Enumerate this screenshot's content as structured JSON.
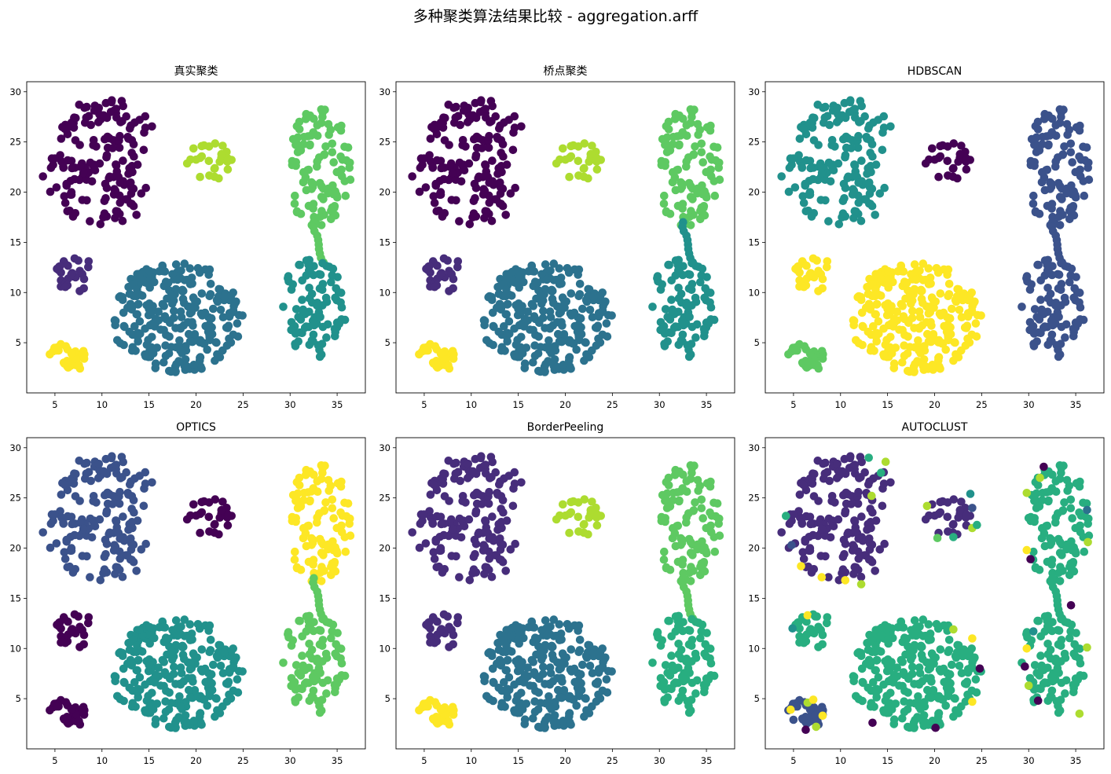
{
  "figure_title": "多种聚类算法结果比较 - aggregation.arff",
  "palette": [
    "#440154",
    "#472d7b",
    "#3b528b",
    "#2c728e",
    "#21918c",
    "#28ae80",
    "#5ec962",
    "#addc30",
    "#fde725"
  ],
  "chart_data": [
    {
      "type": "scatter",
      "title": "真实聚类",
      "xlim": [
        2,
        38
      ],
      "ylim": [
        0,
        31
      ],
      "xticks": [
        5,
        10,
        15,
        20,
        25,
        30,
        35
      ],
      "yticks": [
        5,
        10,
        15,
        20,
        25,
        30
      ],
      "clusters": [
        {
          "shape": "crescent",
          "cx": 11,
          "cy": 23,
          "color_index": 0
        },
        {
          "shape": "ellipse",
          "cx": 21.5,
          "cy": 23,
          "rx": 2.5,
          "ry": 2,
          "count": 28,
          "color_index": 7
        },
        {
          "shape": "ellipse",
          "cx": 33,
          "cy": 22.5,
          "rx": 3.5,
          "ry": 6,
          "count": 110,
          "color_index": 6
        },
        {
          "shape": "bridge",
          "x1": 32.5,
          "y1": 17,
          "x2": 33.5,
          "y2": 13,
          "count": 10,
          "color_index": 6
        },
        {
          "shape": "ellipse",
          "cx": 32.5,
          "cy": 8.5,
          "rx": 3.5,
          "ry": 5,
          "count": 95,
          "color_index": 4
        },
        {
          "shape": "ellipse",
          "cx": 7,
          "cy": 12,
          "rx": 2,
          "ry": 2,
          "count": 30,
          "color_index": 1
        },
        {
          "shape": "ellipse",
          "cx": 18,
          "cy": 7.5,
          "rx": 7,
          "ry": 5.5,
          "count": 270,
          "color_index": 3
        },
        {
          "shape": "ellipse",
          "cx": 6.3,
          "cy": 3.5,
          "rx": 2,
          "ry": 1.5,
          "count": 34,
          "color_index": 8
        }
      ]
    },
    {
      "type": "scatter",
      "title": "桥点聚类",
      "xlim": [
        2,
        38
      ],
      "ylim": [
        0,
        31
      ],
      "xticks": [
        5,
        10,
        15,
        20,
        25,
        30,
        35
      ],
      "yticks": [
        5,
        10,
        15,
        20,
        25,
        30
      ],
      "clusters": [
        {
          "shape": "crescent",
          "cx": 11,
          "cy": 23,
          "color_index": 0
        },
        {
          "shape": "ellipse",
          "cx": 21.5,
          "cy": 23,
          "rx": 2.5,
          "ry": 2,
          "count": 28,
          "color_index": 7
        },
        {
          "shape": "ellipse",
          "cx": 33,
          "cy": 22.5,
          "rx": 3.5,
          "ry": 6,
          "count": 110,
          "color_index": 6
        },
        {
          "shape": "bridge",
          "x1": 32.5,
          "y1": 17,
          "x2": 33.5,
          "y2": 13,
          "count": 10,
          "color_index": 4
        },
        {
          "shape": "ellipse",
          "cx": 32.5,
          "cy": 8.5,
          "rx": 3.5,
          "ry": 5,
          "count": 95,
          "color_index": 4
        },
        {
          "shape": "ellipse",
          "cx": 7,
          "cy": 12,
          "rx": 2,
          "ry": 2,
          "count": 30,
          "color_index": 1
        },
        {
          "shape": "ellipse",
          "cx": 18,
          "cy": 7.5,
          "rx": 7,
          "ry": 5.5,
          "count": 270,
          "color_index": 3
        },
        {
          "shape": "ellipse",
          "cx": 6.3,
          "cy": 3.5,
          "rx": 2,
          "ry": 1.5,
          "count": 34,
          "color_index": 8
        }
      ]
    },
    {
      "type": "scatter",
      "title": "HDBSCAN",
      "xlim": [
        2,
        38
      ],
      "ylim": [
        0,
        31
      ],
      "xticks": [
        5,
        10,
        15,
        20,
        25,
        30,
        35
      ],
      "yticks": [
        5,
        10,
        15,
        20,
        25,
        30
      ],
      "clusters": [
        {
          "shape": "crescent",
          "cx": 11,
          "cy": 23,
          "color_index": 4
        },
        {
          "shape": "ellipse",
          "cx": 21.5,
          "cy": 23,
          "rx": 2.5,
          "ry": 2,
          "count": 28,
          "color_index": 0
        },
        {
          "shape": "ellipse",
          "cx": 33,
          "cy": 22.5,
          "rx": 3.5,
          "ry": 6,
          "count": 110,
          "color_index": 2
        },
        {
          "shape": "bridge",
          "x1": 32.5,
          "y1": 17,
          "x2": 33.5,
          "y2": 13,
          "count": 10,
          "color_index": 2
        },
        {
          "shape": "ellipse",
          "cx": 32.5,
          "cy": 8.5,
          "rx": 3.5,
          "ry": 5,
          "count": 95,
          "color_index": 2
        },
        {
          "shape": "ellipse",
          "cx": 7,
          "cy": 12,
          "rx": 2,
          "ry": 2,
          "count": 30,
          "color_index": 8
        },
        {
          "shape": "ellipse",
          "cx": 18,
          "cy": 7.5,
          "rx": 7,
          "ry": 5.5,
          "count": 270,
          "color_index": 8
        },
        {
          "shape": "ellipse",
          "cx": 6.3,
          "cy": 3.5,
          "rx": 2,
          "ry": 1.5,
          "count": 34,
          "color_index": 6
        }
      ]
    },
    {
      "type": "scatter",
      "title": "OPTICS",
      "xlim": [
        2,
        38
      ],
      "ylim": [
        0,
        31
      ],
      "xticks": [
        5,
        10,
        15,
        20,
        25,
        30,
        35
      ],
      "yticks": [
        5,
        10,
        15,
        20,
        25,
        30
      ],
      "clusters": [
        {
          "shape": "crescent",
          "cx": 11,
          "cy": 23,
          "color_index": 2
        },
        {
          "shape": "ellipse",
          "cx": 21.5,
          "cy": 23,
          "rx": 2.5,
          "ry": 2,
          "count": 28,
          "color_index": 0
        },
        {
          "shape": "ellipse",
          "cx": 33,
          "cy": 22.5,
          "rx": 3.5,
          "ry": 6,
          "count": 110,
          "color_index": 8
        },
        {
          "shape": "bridge",
          "x1": 32.5,
          "y1": 17,
          "x2": 33.5,
          "y2": 13,
          "count": 10,
          "color_index": 6
        },
        {
          "shape": "ellipse",
          "cx": 32.5,
          "cy": 8.5,
          "rx": 3.5,
          "ry": 5,
          "count": 95,
          "color_index": 6
        },
        {
          "shape": "ellipse",
          "cx": 7,
          "cy": 12,
          "rx": 2,
          "ry": 2,
          "count": 30,
          "color_index": 0
        },
        {
          "shape": "ellipse",
          "cx": 18,
          "cy": 7.5,
          "rx": 7,
          "ry": 5.5,
          "count": 270,
          "color_index": 4
        },
        {
          "shape": "ellipse",
          "cx": 6.3,
          "cy": 3.5,
          "rx": 2,
          "ry": 1.5,
          "count": 34,
          "color_index": 0
        }
      ]
    },
    {
      "type": "scatter",
      "title": "BorderPeeling",
      "xlim": [
        2,
        38
      ],
      "ylim": [
        0,
        31
      ],
      "xticks": [
        5,
        10,
        15,
        20,
        25,
        30,
        35
      ],
      "yticks": [
        5,
        10,
        15,
        20,
        25,
        30
      ],
      "clusters": [
        {
          "shape": "crescent",
          "cx": 11,
          "cy": 23,
          "color_index": 1
        },
        {
          "shape": "ellipse",
          "cx": 21.5,
          "cy": 23,
          "rx": 2.5,
          "ry": 2,
          "count": 28,
          "color_index": 7
        },
        {
          "shape": "ellipse",
          "cx": 33,
          "cy": 22.5,
          "rx": 3.5,
          "ry": 6,
          "count": 110,
          "color_index": 6
        },
        {
          "shape": "bridge",
          "x1": 32.5,
          "y1": 17,
          "x2": 33.5,
          "y2": 13,
          "count": 10,
          "color_index": 6
        },
        {
          "shape": "ellipse",
          "cx": 32.5,
          "cy": 8.5,
          "rx": 3.5,
          "ry": 5,
          "count": 95,
          "color_index": 5
        },
        {
          "shape": "ellipse",
          "cx": 7,
          "cy": 12,
          "rx": 2,
          "ry": 2,
          "count": 30,
          "color_index": 1
        },
        {
          "shape": "ellipse",
          "cx": 18,
          "cy": 7.5,
          "rx": 7,
          "ry": 5.5,
          "count": 270,
          "color_index": 3
        },
        {
          "shape": "ellipse",
          "cx": 6.3,
          "cy": 3.5,
          "rx": 2,
          "ry": 1.5,
          "count": 34,
          "color_index": 8
        }
      ]
    },
    {
      "type": "scatter",
      "title": "AUTOCLUST",
      "xlim": [
        2,
        38
      ],
      "ylim": [
        0,
        31
      ],
      "xticks": [
        5,
        10,
        15,
        20,
        25,
        30,
        35
      ],
      "yticks": [
        5,
        10,
        15,
        20,
        25,
        30
      ],
      "clusters": [
        {
          "shape": "crescent",
          "cx": 11,
          "cy": 23,
          "color_index": 1
        },
        {
          "shape": "ellipse",
          "cx": 21.5,
          "cy": 23,
          "rx": 2.5,
          "ry": 2,
          "count": 28,
          "color_index": 1
        },
        {
          "shape": "ellipse",
          "cx": 33,
          "cy": 22.5,
          "rx": 3.5,
          "ry": 6,
          "count": 110,
          "color_index": 5
        },
        {
          "shape": "bridge",
          "x1": 32.5,
          "y1": 17,
          "x2": 33.5,
          "y2": 13,
          "count": 10,
          "color_index": 5
        },
        {
          "shape": "ellipse",
          "cx": 32.5,
          "cy": 8.5,
          "rx": 3.5,
          "ry": 5,
          "count": 95,
          "color_index": 5
        },
        {
          "shape": "ellipse",
          "cx": 7,
          "cy": 12,
          "rx": 2,
          "ry": 2,
          "count": 30,
          "color_index": 5
        },
        {
          "shape": "ellipse",
          "cx": 18,
          "cy": 7.5,
          "rx": 7,
          "ry": 5.5,
          "count": 270,
          "color_index": 5
        },
        {
          "shape": "ellipse",
          "cx": 6.3,
          "cy": 3.5,
          "rx": 2,
          "ry": 1.5,
          "count": 34,
          "color_index": 2
        }
      ],
      "noise_points": [
        {
          "x": 4.2,
          "y": 23.2,
          "color_index": 5
        },
        {
          "x": 4.8,
          "y": 20.3,
          "color_index": 2
        },
        {
          "x": 5.8,
          "y": 18.2,
          "color_index": 8
        },
        {
          "x": 8.0,
          "y": 17.1,
          "color_index": 8
        },
        {
          "x": 10.5,
          "y": 16.8,
          "color_index": 8
        },
        {
          "x": 12.2,
          "y": 16.4,
          "color_index": 7
        },
        {
          "x": 13.0,
          "y": 29.0,
          "color_index": 5
        },
        {
          "x": 14.8,
          "y": 28.6,
          "color_index": 7
        },
        {
          "x": 14.3,
          "y": 27.5,
          "color_index": 5
        },
        {
          "x": 13.3,
          "y": 25.2,
          "color_index": 7
        },
        {
          "x": 19.2,
          "y": 24.2,
          "color_index": 7
        },
        {
          "x": 20.3,
          "y": 21.0,
          "color_index": 6
        },
        {
          "x": 22.0,
          "y": 21.1,
          "color_index": 5
        },
        {
          "x": 24.0,
          "y": 22.0,
          "color_index": 7
        },
        {
          "x": 24.5,
          "y": 22.3,
          "color_index": 5
        },
        {
          "x": 23.8,
          "y": 25.4,
          "color_index": 4
        },
        {
          "x": 24.0,
          "y": 24.0,
          "color_index": 2
        },
        {
          "x": 29.8,
          "y": 25.5,
          "color_index": 7
        },
        {
          "x": 30.0,
          "y": 23.0,
          "color_index": 5
        },
        {
          "x": 29.8,
          "y": 19.8,
          "color_index": 8
        },
        {
          "x": 30.2,
          "y": 18.9,
          "color_index": 0
        },
        {
          "x": 31.2,
          "y": 27.0,
          "color_index": 7
        },
        {
          "x": 31.6,
          "y": 28.1,
          "color_index": 0
        },
        {
          "x": 36.3,
          "y": 20.6,
          "color_index": 7
        },
        {
          "x": 36.2,
          "y": 23.8,
          "color_index": 3
        },
        {
          "x": 34.5,
          "y": 14.3,
          "color_index": 0
        },
        {
          "x": 36.2,
          "y": 10.1,
          "color_index": 7
        },
        {
          "x": 29.6,
          "y": 8.2,
          "color_index": 0
        },
        {
          "x": 29.8,
          "y": 10.0,
          "color_index": 8
        },
        {
          "x": 30.0,
          "y": 6.3,
          "color_index": 7
        },
        {
          "x": 30.5,
          "y": 11.7,
          "color_index": 4
        },
        {
          "x": 31.0,
          "y": 4.8,
          "color_index": 0
        },
        {
          "x": 35.4,
          "y": 3.5,
          "color_index": 7
        },
        {
          "x": 24.8,
          "y": 8.0,
          "color_index": 0
        },
        {
          "x": 24.0,
          "y": 4.7,
          "color_index": 8
        },
        {
          "x": 24.0,
          "y": 11.0,
          "color_index": 8
        },
        {
          "x": 22.0,
          "y": 11.9,
          "color_index": 7
        },
        {
          "x": 20.1,
          "y": 2.1,
          "color_index": 0
        },
        {
          "x": 13.4,
          "y": 2.6,
          "color_index": 0
        },
        {
          "x": 6.5,
          "y": 13.3,
          "color_index": 8
        },
        {
          "x": 7.3,
          "y": 13.2,
          "color_index": 5
        },
        {
          "x": 4.9,
          "y": 12.0,
          "color_index": 4
        },
        {
          "x": 4.7,
          "y": 3.9,
          "color_index": 8
        },
        {
          "x": 6.5,
          "y": 4.6,
          "color_index": 7
        },
        {
          "x": 8.1,
          "y": 3.3,
          "color_index": 8
        },
        {
          "x": 7.4,
          "y": 2.2,
          "color_index": 7
        },
        {
          "x": 6.3,
          "y": 1.9,
          "color_index": 0
        },
        {
          "x": 7.1,
          "y": 4.9,
          "color_index": 8
        },
        {
          "x": 5.0,
          "y": 2.9,
          "color_index": 2
        }
      ]
    }
  ]
}
